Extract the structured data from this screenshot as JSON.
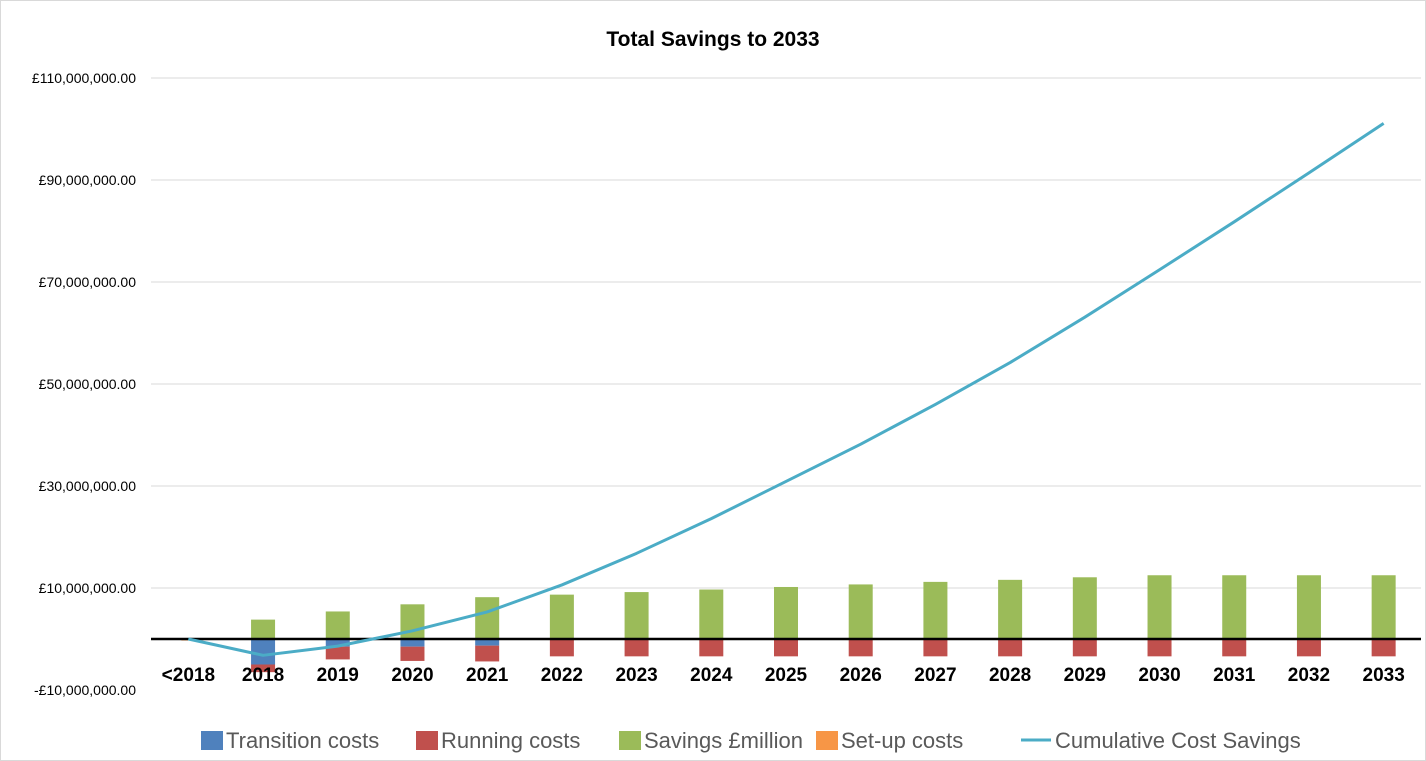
{
  "chart_data": {
    "type": "bar",
    "title": "Total Savings to 2033",
    "categories": [
      "<2018",
      "2018",
      "2019",
      "2020",
      "2021",
      "2022",
      "2023",
      "2024",
      "2025",
      "2026",
      "2027",
      "2028",
      "2029",
      "2030",
      "2031",
      "2032",
      "2033"
    ],
    "y_ticks": [
      "£110,000,000.00",
      "£90,000,000.00",
      "£70,000,000.00",
      "£50,000,000.00",
      "£30,000,000.00",
      "£10,000,000.00",
      "-£10,000,000.00"
    ],
    "ylim": [
      -10000000,
      110000000
    ],
    "grid": true,
    "legend_position": "bottom",
    "series": [
      {
        "name": "Transition costs",
        "kind": "bar",
        "color": "#4F81BD",
        "values": [
          0,
          -5000000,
          -1500000,
          -1500000,
          -1300000,
          0,
          0,
          0,
          0,
          0,
          0,
          0,
          0,
          0,
          0,
          0,
          0
        ]
      },
      {
        "name": "Running costs",
        "kind": "bar",
        "color": "#C0504D",
        "values": [
          0,
          -1500000,
          -2500000,
          -2800000,
          -3100000,
          -3400000,
          -3400000,
          -3400000,
          -3400000,
          -3400000,
          -3400000,
          -3400000,
          -3400000,
          -3400000,
          -3400000,
          -3400000,
          -3400000
        ]
      },
      {
        "name": "Savings £million",
        "kind": "bar",
        "color": "#9BBB59",
        "values": [
          0,
          3800000,
          5400000,
          6800000,
          8200000,
          8700000,
          9200000,
          9700000,
          10200000,
          10700000,
          11200000,
          11600000,
          12100000,
          12500000,
          12500000,
          12500000,
          12500000
        ]
      },
      {
        "name": "Set-up costs",
        "kind": "bar",
        "color": "#F79646",
        "values": [
          -200000,
          0,
          0,
          0,
          0,
          0,
          0,
          0,
          0,
          0,
          0,
          0,
          0,
          0,
          0,
          0,
          0
        ]
      },
      {
        "name": "Cumulative Cost Savings",
        "kind": "line",
        "color": "#4BACC6",
        "values": [
          0,
          -3200000,
          -1400000,
          1600000,
          5300000,
          10600000,
          16800000,
          23600000,
          30900000,
          38200000,
          46000000,
          54200000,
          63100000,
          72400000,
          81800000,
          91400000,
          101100000
        ]
      }
    ]
  }
}
